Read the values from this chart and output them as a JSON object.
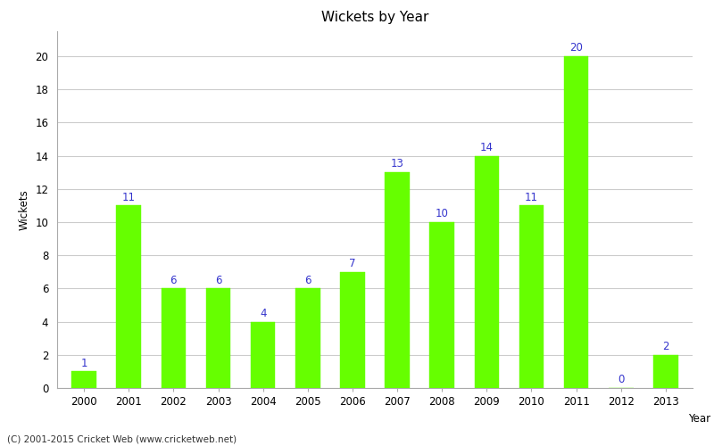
{
  "years": [
    2000,
    2001,
    2002,
    2003,
    2004,
    2005,
    2006,
    2007,
    2008,
    2009,
    2010,
    2011,
    2012,
    2013
  ],
  "wickets": [
    1,
    11,
    6,
    6,
    4,
    6,
    7,
    13,
    10,
    14,
    11,
    20,
    0,
    2
  ],
  "bar_color": "#66ff00",
  "bar_edge_color": "#66ff00",
  "label_color": "#3333cc",
  "title": "Wickets by Year",
  "xlabel": "Year",
  "ylabel": "Wickets",
  "ylim": [
    0,
    21.5
  ],
  "yticks": [
    0,
    2,
    4,
    6,
    8,
    10,
    12,
    14,
    16,
    18,
    20
  ],
  "footnote": "(C) 2001-2015 Cricket Web (www.cricketweb.net)",
  "background_color": "#ffffff",
  "grid_color": "#cccccc",
  "label_fontsize": 8.5,
  "axis_fontsize": 8.5,
  "title_fontsize": 11
}
